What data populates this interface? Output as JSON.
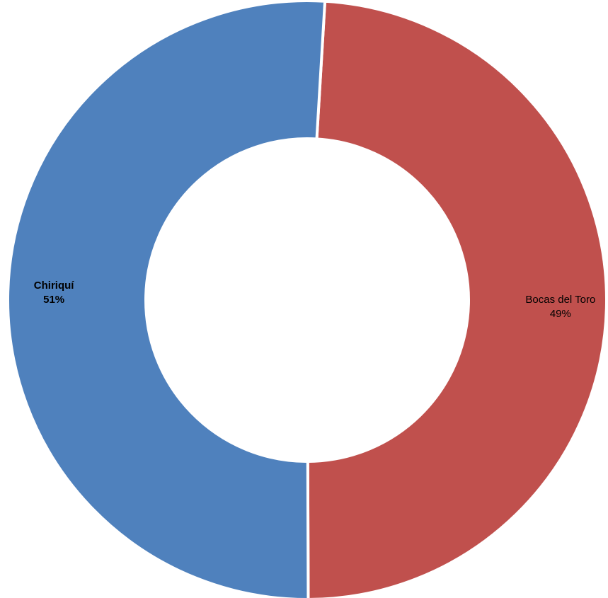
{
  "chart_data": {
    "type": "pie",
    "style": "donut",
    "title": "",
    "slices": [
      {
        "label": "Bocas del Toro",
        "value": 49,
        "display": "49%",
        "color": "#c0504d",
        "label_weight": "normal"
      },
      {
        "label": "Chiriquí",
        "value": 51,
        "display": "51%",
        "color": "#4f81bd",
        "label_weight": "bold"
      }
    ],
    "legend": "none"
  }
}
